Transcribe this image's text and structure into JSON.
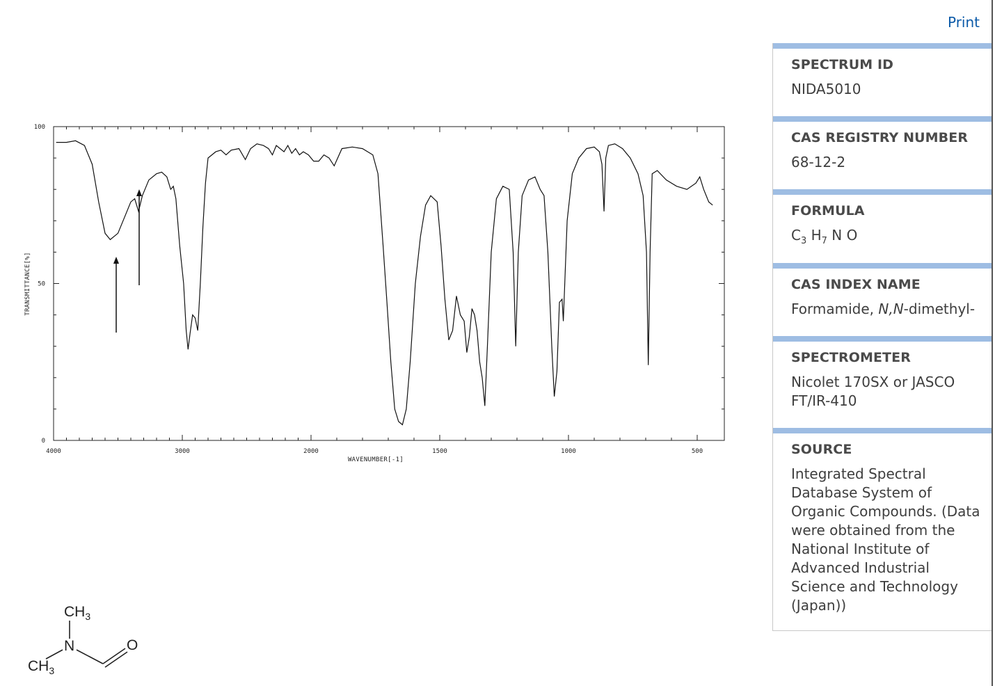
{
  "header": {
    "print_label": "Print"
  },
  "panel": {
    "spectrum_id": {
      "label": "SPECTRUM ID",
      "value": "NIDA5010"
    },
    "cas_registry": {
      "label": "CAS REGISTRY NUMBER",
      "value": "68-12-2"
    },
    "formula": {
      "label": "FORMULA",
      "parts": [
        "C",
        "3",
        "H",
        "7",
        "N O"
      ]
    },
    "cas_index_name": {
      "label": "CAS INDEX NAME",
      "prefix": "Formamide, ",
      "italic": "N,N",
      "suffix": "-dimethyl-"
    },
    "spectrometer": {
      "label": "SPECTROMETER",
      "value": "Nicolet 170SX or JASCO FT/IR-410"
    },
    "source": {
      "label": "SOURCE",
      "value": "Integrated Spectral Database System of Organic Compounds. (Data were obtained from the National Institute of Advanced Industrial Science and Technology (Japan))"
    }
  },
  "chart_data": {
    "type": "line",
    "xlabel": "WAVENUMBER[-1]",
    "ylabel": "TRANSMITTANCE[%]",
    "xlim": [
      4000,
      400
    ],
    "ylim": [
      0,
      100
    ],
    "x_ticks": [
      4000,
      3000,
      2000,
      1500,
      1000,
      500
    ],
    "y_ticks": [
      0,
      50,
      100
    ],
    "grid": false,
    "series": [
      {
        "points": [
          [
            3980,
            95
          ],
          [
            3900,
            95
          ],
          [
            3830,
            95.5
          ],
          [
            3760,
            94
          ],
          [
            3700,
            88
          ],
          [
            3650,
            76
          ],
          [
            3600,
            66
          ],
          [
            3560,
            64
          ],
          [
            3500,
            66
          ],
          [
            3440,
            72
          ],
          [
            3400,
            76
          ],
          [
            3370,
            77
          ],
          [
            3340,
            73
          ],
          [
            3310,
            78
          ],
          [
            3260,
            83
          ],
          [
            3200,
            85
          ],
          [
            3160,
            85.5
          ],
          [
            3120,
            84
          ],
          [
            3090,
            80
          ],
          [
            3070,
            81
          ],
          [
            3050,
            77
          ],
          [
            3020,
            62
          ],
          [
            2990,
            50
          ],
          [
            2970,
            35
          ],
          [
            2955,
            29
          ],
          [
            2940,
            34
          ],
          [
            2920,
            40
          ],
          [
            2900,
            39
          ],
          [
            2880,
            35
          ],
          [
            2860,
            50
          ],
          [
            2840,
            68
          ],
          [
            2820,
            82
          ],
          [
            2800,
            90
          ],
          [
            2740,
            92
          ],
          [
            2700,
            92.5
          ],
          [
            2660,
            91
          ],
          [
            2620,
            92.5
          ],
          [
            2560,
            93
          ],
          [
            2510,
            89.5
          ],
          [
            2470,
            93
          ],
          [
            2420,
            94.5
          ],
          [
            2370,
            94
          ],
          [
            2330,
            93
          ],
          [
            2300,
            91
          ],
          [
            2270,
            94
          ],
          [
            2240,
            93
          ],
          [
            2210,
            92
          ],
          [
            2180,
            94
          ],
          [
            2150,
            91.5
          ],
          [
            2120,
            93
          ],
          [
            2090,
            91
          ],
          [
            2060,
            92
          ],
          [
            2020,
            91
          ],
          [
            1990,
            89
          ],
          [
            1970,
            89
          ],
          [
            1950,
            91
          ],
          [
            1930,
            90
          ],
          [
            1910,
            87.5
          ],
          [
            1880,
            93
          ],
          [
            1840,
            93.5
          ],
          [
            1800,
            93
          ],
          [
            1760,
            91
          ],
          [
            1740,
            85
          ],
          [
            1720,
            62
          ],
          [
            1705,
            44
          ],
          [
            1690,
            25
          ],
          [
            1675,
            10
          ],
          [
            1660,
            6
          ],
          [
            1645,
            5
          ],
          [
            1630,
            10
          ],
          [
            1615,
            25
          ],
          [
            1595,
            50
          ],
          [
            1575,
            65
          ],
          [
            1555,
            75
          ],
          [
            1535,
            78
          ],
          [
            1510,
            76
          ],
          [
            1495,
            62
          ],
          [
            1480,
            45
          ],
          [
            1465,
            32
          ],
          [
            1450,
            35
          ],
          [
            1435,
            46
          ],
          [
            1420,
            40
          ],
          [
            1405,
            38
          ],
          [
            1395,
            28
          ],
          [
            1385,
            33
          ],
          [
            1375,
            42
          ],
          [
            1365,
            40
          ],
          [
            1355,
            35
          ],
          [
            1345,
            25
          ],
          [
            1335,
            20
          ],
          [
            1325,
            11
          ],
          [
            1315,
            30
          ],
          [
            1300,
            60
          ],
          [
            1280,
            77
          ],
          [
            1255,
            81
          ],
          [
            1230,
            80
          ],
          [
            1215,
            60
          ],
          [
            1205,
            30
          ],
          [
            1195,
            60
          ],
          [
            1180,
            78
          ],
          [
            1155,
            83
          ],
          [
            1130,
            84
          ],
          [
            1110,
            80
          ],
          [
            1095,
            78
          ],
          [
            1080,
            60
          ],
          [
            1065,
            30
          ],
          [
            1055,
            14
          ],
          [
            1045,
            22
          ],
          [
            1035,
            44
          ],
          [
            1025,
            45
          ],
          [
            1020,
            38
          ],
          [
            1005,
            70
          ],
          [
            985,
            85
          ],
          [
            960,
            90
          ],
          [
            930,
            93
          ],
          [
            900,
            93.5
          ],
          [
            880,
            92
          ],
          [
            870,
            88
          ],
          [
            862,
            73
          ],
          [
            855,
            90
          ],
          [
            845,
            94
          ],
          [
            820,
            94.5
          ],
          [
            790,
            93
          ],
          [
            760,
            90
          ],
          [
            730,
            85
          ],
          [
            710,
            78
          ],
          [
            697,
            60
          ],
          [
            690,
            24
          ],
          [
            683,
            60
          ],
          [
            675,
            85
          ],
          [
            655,
            86
          ],
          [
            620,
            83
          ],
          [
            580,
            81
          ],
          [
            540,
            80
          ],
          [
            505,
            82
          ],
          [
            490,
            84
          ],
          [
            475,
            80
          ],
          [
            455,
            76
          ],
          [
            440,
            75
          ]
        ]
      }
    ]
  },
  "molecule": {
    "ch3_top": "CH",
    "ch3_top_sub": "3",
    "nitrogen": "N",
    "ch3_left": "CH",
    "ch3_left_sub": "3",
    "oxygen": "O"
  }
}
